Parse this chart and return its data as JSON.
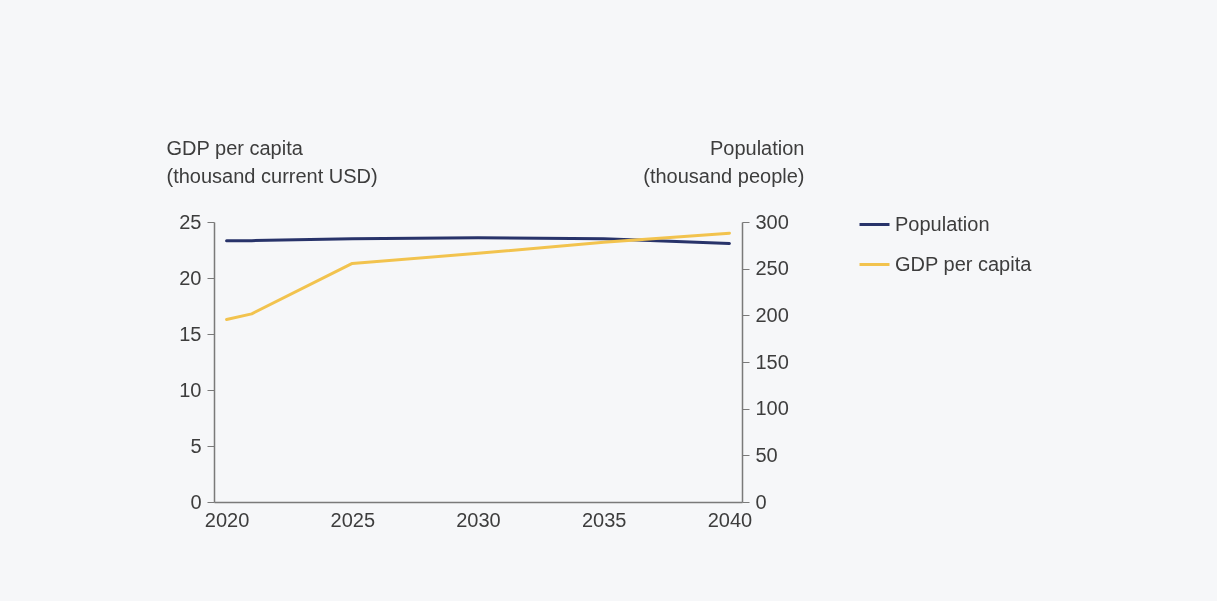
{
  "chart_data": {
    "type": "line",
    "ylabel": "GDP per capita\n(thousand current USD)",
    "y2label": "Population\n(thousand people)",
    "x": [
      2020,
      2021,
      2025,
      2030,
      2035,
      2040
    ],
    "series": [
      {
        "name": "Population",
        "color": "#28336a",
        "axis": "y2",
        "values": [
          280,
          280,
          282,
          283,
          282,
          277
        ]
      },
      {
        "name": "GDP per capita",
        "color": "#f2c34e",
        "values": [
          16.3,
          16.8,
          21.3,
          22.2,
          23.2,
          24.0
        ]
      }
    ],
    "xlim": [
      2019.5,
      2040.5
    ],
    "xticks": [
      2020,
      2025,
      2030,
      2035,
      2040
    ],
    "ylim": [
      0,
      25
    ],
    "yticks": [
      0,
      5,
      10,
      15,
      20,
      25
    ],
    "y2lim": [
      0,
      300
    ],
    "y2ticks": [
      0,
      50,
      100,
      150,
      200,
      250,
      300
    ],
    "grid": false,
    "legend": "right",
    "line_style": "solid"
  }
}
